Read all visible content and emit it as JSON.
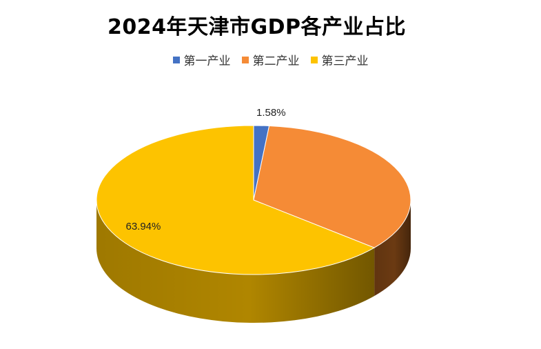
{
  "chart_data": {
    "type": "pie",
    "title": "2024年天津市GDP各产业占比",
    "categories": [
      "第一产业",
      "第二产业",
      "第三产业"
    ],
    "values": [
      1.58,
      34.48,
      63.94
    ],
    "data_labels": [
      "1.58%",
      "",
      "63.94%"
    ],
    "colors": [
      "#4472C4",
      "#F58B36",
      "#FDC300"
    ],
    "side_colors": [
      "#2F4F8C",
      "#6B3A12",
      "#B08600"
    ],
    "legend_position": "top",
    "style": "3d"
  }
}
